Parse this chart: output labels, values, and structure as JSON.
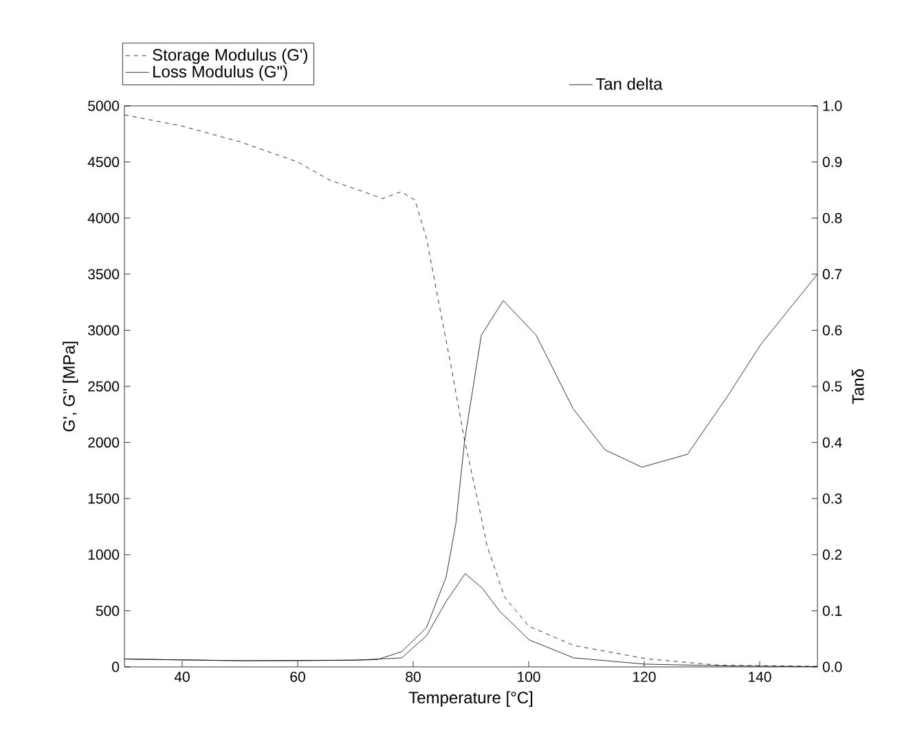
{
  "chart_data": {
    "type": "line",
    "xlabel": "Temperature [°C]",
    "ylabel": "G', G\" [MPa]",
    "y2label": "Tanδ",
    "xlim": [
      30,
      150
    ],
    "xticks": [
      40,
      60,
      80,
      100,
      120,
      140
    ],
    "ylim": [
      0,
      5000
    ],
    "yticks": [
      0,
      500,
      1000,
      1500,
      2000,
      2500,
      3000,
      3500,
      4000,
      4500,
      5000
    ],
    "y2lim": [
      0,
      1
    ],
    "y2ticks": [
      {
        "value": 0,
        "label": "0.0"
      },
      {
        "value": 0.1,
        "label": "0.1"
      },
      {
        "value": 0.2,
        "label": "0.2"
      },
      {
        "value": 0.3,
        "label": "0.3"
      },
      {
        "value": 0.4,
        "label": "0.4"
      },
      {
        "value": 0.5,
        "label": "0.5"
      },
      {
        "value": 0.6,
        "label": "0.6"
      },
      {
        "value": 0.7,
        "label": "0.7"
      },
      {
        "value": 0.8,
        "label": "0.8"
      },
      {
        "value": 0.9,
        "label": "0.9"
      },
      {
        "value": 1,
        "label": "1.0"
      }
    ],
    "grid": false,
    "legend": "top",
    "marker": "none",
    "series": [
      {
        "name": "Storage Modulus (G')",
        "color": "#000000",
        "line_style": "dashed",
        "x": [
          30,
          40,
          50,
          60,
          65.6,
          70,
          74.7,
          77.9,
          80.3,
          82.3,
          84.6,
          86.6,
          88.9,
          91,
          92.8,
          95.8,
          100,
          107.8,
          120.5,
          133,
          150
        ],
        "values": [
          4920,
          4820,
          4680,
          4500,
          4337,
          4260,
          4174,
          4235,
          4160,
          3820,
          3200,
          2670,
          2017,
          1527,
          1077,
          625,
          363,
          191,
          71,
          15,
          5
        ]
      },
      {
        "name": "Loss Modulus (G\")",
        "color": "#000000",
        "line_style": "solid",
        "x": [
          30,
          40,
          50,
          60,
          70,
          74,
          78,
          82.3,
          85.7,
          89,
          92,
          95,
          100.1,
          107.8,
          120,
          135,
          150
        ],
        "values": [
          70,
          62,
          55,
          55,
          60,
          70,
          80,
          277,
          583,
          831,
          700,
          494,
          240,
          80,
          25,
          8,
          3
        ]
      },
      {
        "name": "Tan delta",
        "color": "#000000",
        "line_style": "solid",
        "axis": "y2",
        "x": [
          30,
          50,
          70,
          73.8,
          78,
          82.3,
          85.7,
          87.4,
          88.9,
          91.8,
          95.6,
          101.3,
          107.7,
          113.2,
          119.6,
          127.5,
          134.6,
          140.2,
          150
        ],
        "values": [
          0.014,
          0.011,
          0.012,
          0.013,
          0.027,
          0.07,
          0.16,
          0.256,
          0.403,
          0.591,
          0.653,
          0.591,
          0.46,
          0.387,
          0.356,
          0.379,
          0.485,
          0.575,
          0.7
        ]
      }
    ]
  }
}
